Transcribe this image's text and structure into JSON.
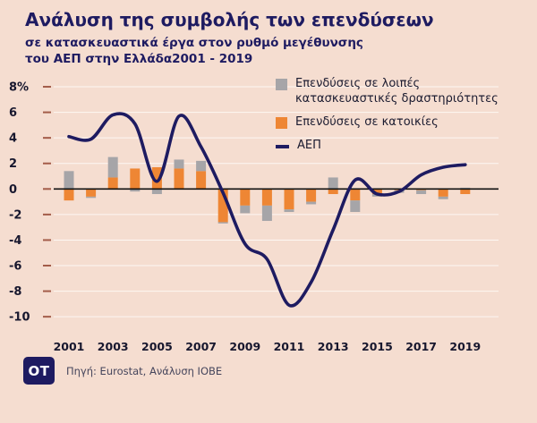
{
  "title": {
    "line1": "Ανάλυση της συμβολής των επενδύσεων",
    "line2": "σε κατασκευαστικά έργα στον ρυθμό μεγέθυνσης",
    "line3": "του ΑΕΠ στην Ελλάδα2001 - 2019"
  },
  "legend": {
    "other_construction_label": "Επενδύσεις σε λοιπές κατασκευαστικές δραστηριότητες",
    "housing_label": "Επενδύσεις σε κατοικίες",
    "gdp_label": "ΑΕΠ"
  },
  "footer": {
    "logo_text": "OT",
    "source_text": "Πηγή: Eurostat, Ανάλυση ΙΟΒΕ"
  },
  "colors": {
    "background": "#f5ddd0",
    "navy": "#1e1b61",
    "orange": "#ee8634",
    "gray": "#a6a5a8",
    "zero_line": "#111111",
    "gridline": "#ffffff",
    "tick": "#a35c49",
    "axis_text": "#17172e"
  },
  "chart_data": {
    "type": "bar",
    "subtype": "stacked-bars-with-line-overlay",
    "title": "Ανάλυση της συμβολής των επενδύσεων σε κατασκευαστικά έργα στον ρυθμό μεγέθυνσης του ΑΕΠ στην Ελλάδα 2001 - 2019",
    "categories": [
      2001,
      2002,
      2003,
      2004,
      2005,
      2006,
      2007,
      2008,
      2009,
      2010,
      2011,
      2012,
      2013,
      2014,
      2015,
      2016,
      2017,
      2018,
      2019
    ],
    "series": [
      {
        "name": "Επενδύσεις σε λοιπές κατασκευαστικές δραστηριότητες",
        "type": "bar",
        "color": "#a6a5a8",
        "values": [
          1.4,
          -0.1,
          1.6,
          -0.2,
          -0.4,
          0.7,
          0.8,
          -0.1,
          -0.6,
          -1.2,
          -0.2,
          -0.2,
          0.9,
          -0.9,
          -0.2,
          -0.2,
          -0.3,
          -0.2,
          0.1
        ]
      },
      {
        "name": "Επενδύσεις σε κατοικίες",
        "type": "bar",
        "color": "#ee8634",
        "values": [
          -0.9,
          -0.6,
          0.9,
          1.6,
          1.7,
          1.6,
          1.4,
          -2.6,
          -1.3,
          -1.3,
          -1.6,
          -1.0,
          -0.4,
          -0.9,
          -0.4,
          -0.1,
          -0.1,
          -0.6,
          -0.4
        ]
      },
      {
        "name": "ΑΕΠ",
        "type": "line",
        "color": "#1e1b61",
        "values": [
          4.1,
          3.9,
          5.8,
          5.1,
          0.6,
          5.7,
          3.3,
          -0.3,
          -4.3,
          -5.5,
          -9.1,
          -7.3,
          -3.2,
          0.7,
          -0.4,
          -0.2,
          1.1,
          1.7,
          1.9
        ]
      }
    ],
    "y_ticks": [
      8,
      6,
      4,
      2,
      0,
      -2,
      -4,
      -6,
      -8,
      -10
    ],
    "y_tick_labels": [
      "8%",
      "6",
      "4",
      "2",
      "0",
      "-2",
      "-4",
      "-6",
      "-8",
      "-10"
    ],
    "x_tick_labels": [
      "2001",
      "2003",
      "2005",
      "2007",
      "2009",
      "2011",
      "2013",
      "2015",
      "2017",
      "2019"
    ],
    "ylim": [
      -10,
      8
    ],
    "y_unit": "%",
    "xlabel": "",
    "ylabel": "",
    "grid": true,
    "legend_position": "top-right"
  }
}
